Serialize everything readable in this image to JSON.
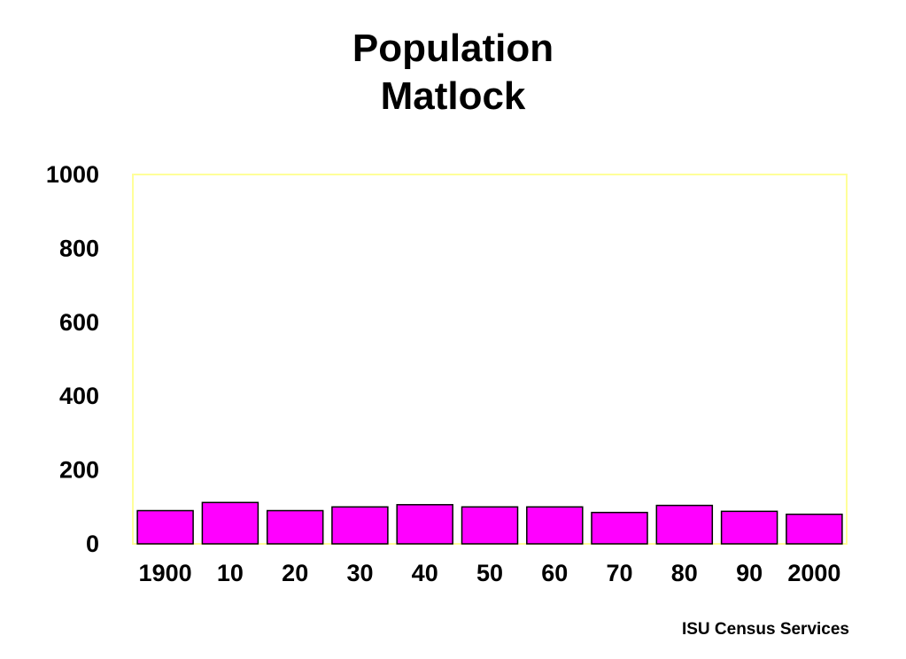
{
  "chart_data": {
    "type": "bar",
    "title_lines": [
      "Population",
      "Matlock"
    ],
    "categories": [
      "1900",
      "10",
      "20",
      "30",
      "40",
      "50",
      "60",
      "70",
      "80",
      "90",
      "2000"
    ],
    "values": [
      90,
      112,
      90,
      100,
      106,
      100,
      100,
      85,
      104,
      88,
      80
    ],
    "ylim": [
      0,
      1000
    ],
    "yticks": [
      "0",
      "200",
      "400",
      "600",
      "800",
      "1000"
    ],
    "grid": false,
    "legend": "none"
  },
  "credit": "ISU Census Services",
  "colors": {
    "bar_fill": "#FF00FF",
    "bar_stroke": "#000000",
    "plot_border": "#FFFF99"
  }
}
